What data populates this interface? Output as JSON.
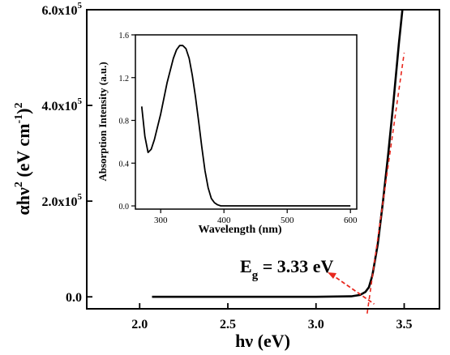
{
  "chart_data": [
    {
      "type": "line",
      "xlabel": "hν (eV)",
      "ylabel_main": "αhν",
      "ylabel_sup1": "2",
      "ylabel_mid": " (eV cm",
      "ylabel_sup2": "-1",
      "ylabel_end": ")",
      "ylabel_sup3": "2",
      "xlim": [
        1.7,
        3.7
      ],
      "ylim": [
        -0.25,
        6.0
      ],
      "x_ticks": [
        2.0,
        2.5,
        3.0,
        3.5
      ],
      "x_tick_labels": [
        "2.0",
        "2.5",
        "3.0",
        "3.5"
      ],
      "y_ticks": [
        0.0,
        2.0,
        4.0,
        6.0
      ],
      "y_tick_labels": [
        {
          "base": "0.0",
          "exp": ""
        },
        {
          "base": "2.0x10",
          "exp": "5"
        },
        {
          "base": "4.0x10",
          "exp": "5"
        },
        {
          "base": "6.0x10",
          "exp": "5"
        }
      ],
      "y_unit_note": "values in units of 10^5",
      "series": [
        {
          "x": [
            2.07,
            2.5,
            3.0,
            3.2,
            3.25,
            3.28,
            3.3,
            3.32,
            3.35,
            3.38,
            3.41,
            3.44,
            3.47,
            3.49
          ],
          "y": [
            0.0,
            0.0,
            0.0,
            0.01,
            0.04,
            0.1,
            0.2,
            0.45,
            1.1,
            2.0,
            3.0,
            4.1,
            5.3,
            6.0
          ],
          "color": "#000000"
        },
        {
          "x": [
            3.29,
            3.5
          ],
          "y": [
            -0.35,
            5.1
          ],
          "color": "#e8281e",
          "style": "dashed"
        }
      ],
      "annotation": {
        "text_main": "E",
        "text_sub": "g",
        "text_rest": " = 3.33 eV",
        "arrow_to_x": 3.33,
        "arrow_to_y": -0.15,
        "color": "#e8281e"
      }
    },
    {
      "type": "line",
      "inset": true,
      "xlabel": "Wavelength (nm)",
      "ylabel": "Absorption Intensity (a.u.)",
      "xlim": [
        260,
        610
      ],
      "ylim": [
        -0.03,
        1.6
      ],
      "x_ticks": [
        300,
        400,
        500,
        600
      ],
      "x_tick_labels": [
        "300",
        "400",
        "500",
        "600"
      ],
      "y_ticks": [
        0.0,
        0.4,
        0.8,
        1.2,
        1.6
      ],
      "y_tick_labels": [
        "0.0",
        "0.4",
        "0.8",
        "1.2",
        "1.6"
      ],
      "series": [
        {
          "x": [
            270,
            275,
            280,
            285,
            290,
            300,
            310,
            320,
            325,
            330,
            335,
            340,
            345,
            350,
            355,
            360,
            365,
            370,
            375,
            380,
            385,
            390,
            395,
            400,
            450,
            500,
            550,
            600
          ],
          "y": [
            0.93,
            0.65,
            0.5,
            0.53,
            0.62,
            0.86,
            1.15,
            1.38,
            1.46,
            1.5,
            1.5,
            1.47,
            1.38,
            1.22,
            1.02,
            0.79,
            0.55,
            0.33,
            0.17,
            0.07,
            0.03,
            0.01,
            0.0,
            0.0,
            0.0,
            0.0,
            0.0,
            0.0
          ],
          "color": "#000000"
        }
      ]
    }
  ]
}
